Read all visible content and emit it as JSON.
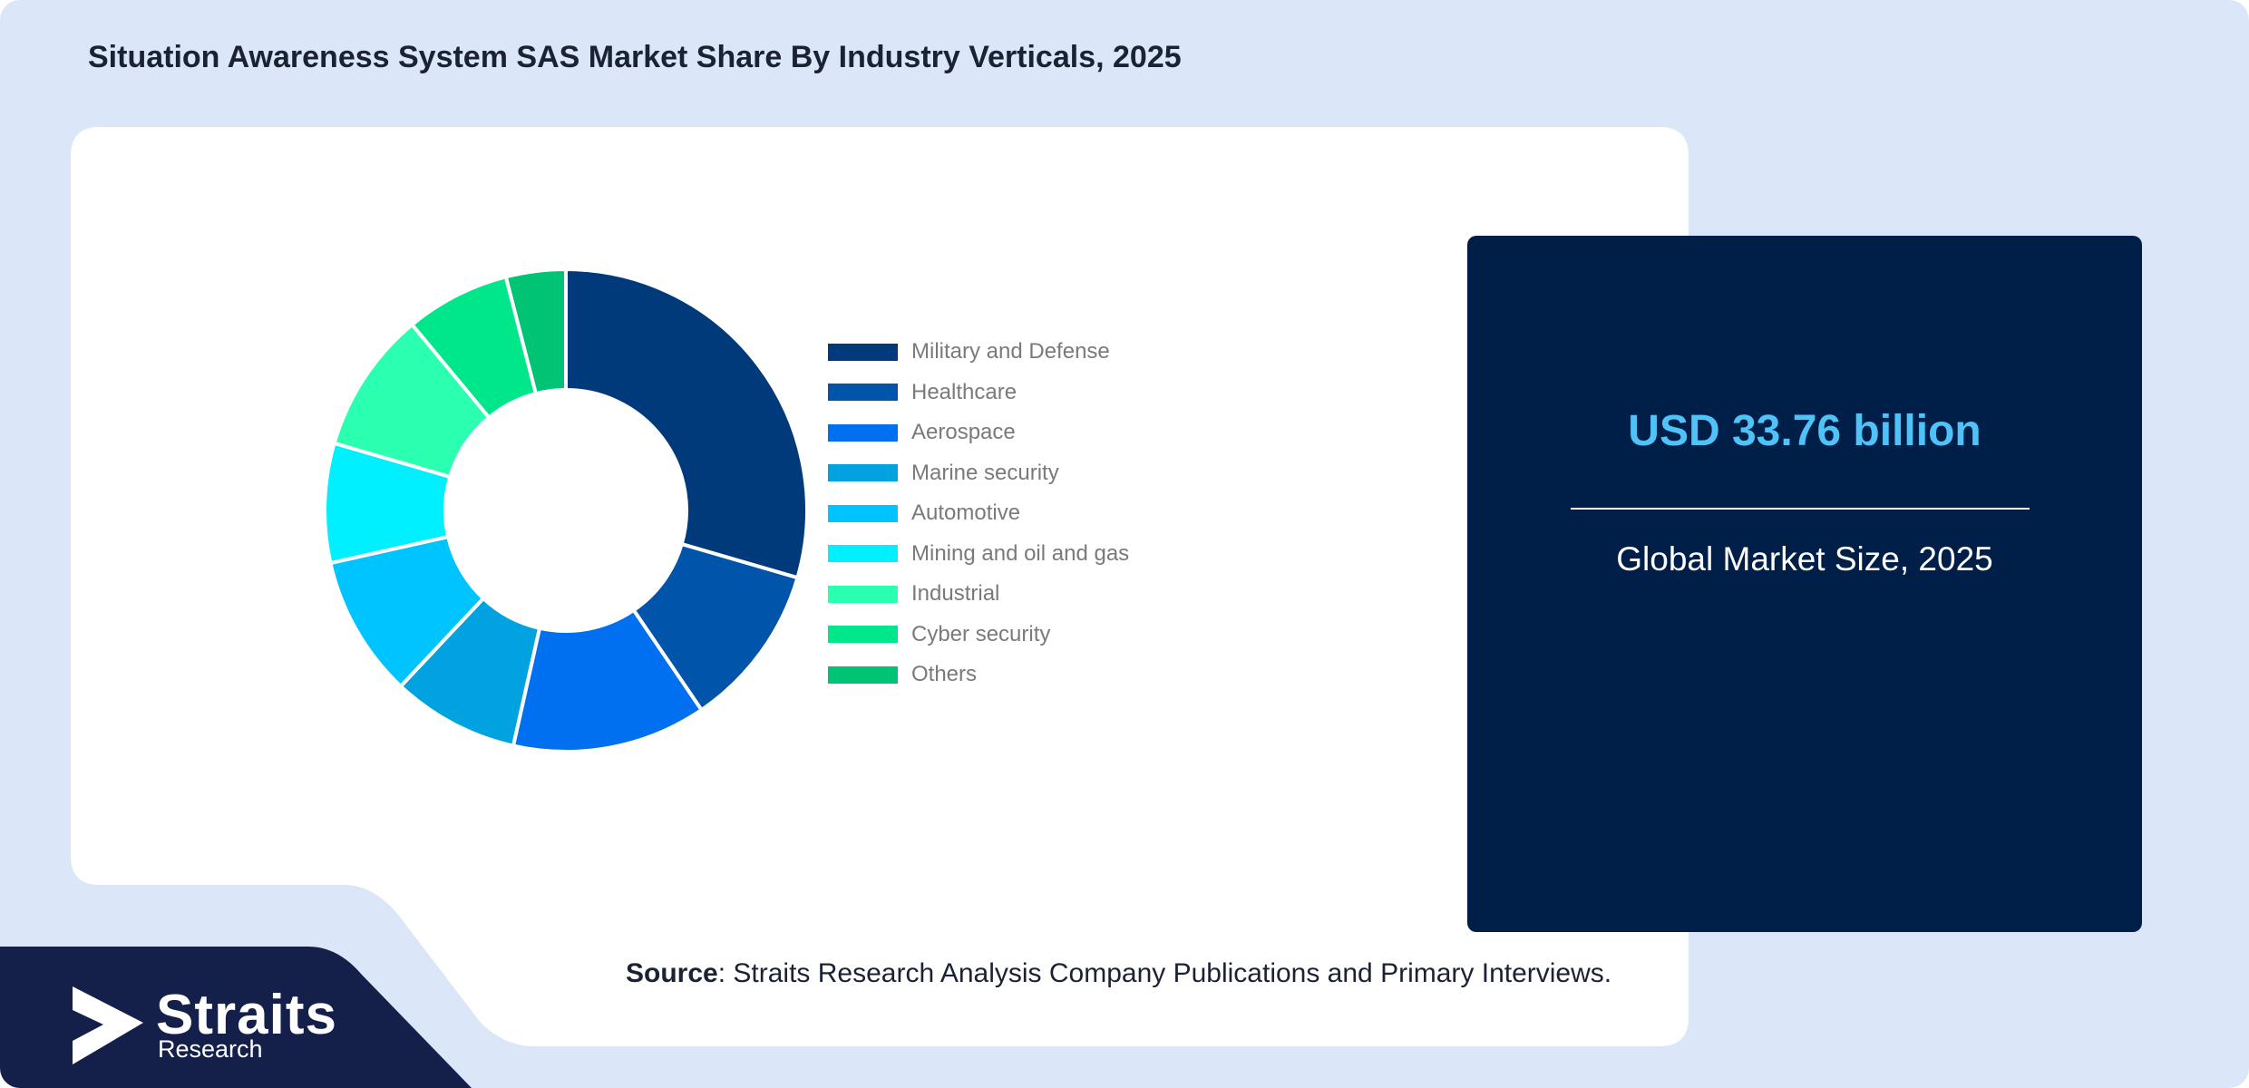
{
  "title": "Situation Awareness System SAS Market Share By Industry Verticals, 2025",
  "chart_data": {
    "type": "pie",
    "donut": true,
    "categories": [
      "Military and Defense",
      "Healthcare",
      "Aerospace",
      "Marine security",
      "Automotive",
      "Mining and oil and gas",
      "Industrial",
      "Cyber security",
      "Others"
    ],
    "values": [
      29.5,
      11.0,
      13.0,
      8.5,
      9.5,
      8.0,
      9.5,
      7.0,
      4.0
    ],
    "colors": [
      "#003a7a",
      "#0055aa",
      "#0070f0",
      "#00a3e0",
      "#00c4ff",
      "#00f0ff",
      "#2bffb0",
      "#00e68a",
      "#00c373"
    ],
    "legend_position": "right",
    "title": "",
    "xlabel": "",
    "ylabel": ""
  },
  "stat": {
    "value": "USD 33.76 billion",
    "caption": "Global Market Size, 2025"
  },
  "source": {
    "label": "Source",
    "text": ": Straits Research Analysis Company Publications and Primary Interviews."
  },
  "logo": {
    "name": "Straits",
    "sub": "Research"
  },
  "colors": {
    "background": "#dbe6f8",
    "card": "#001f48",
    "accent": "#4fc3f7",
    "logo_band": "#141f4a"
  }
}
